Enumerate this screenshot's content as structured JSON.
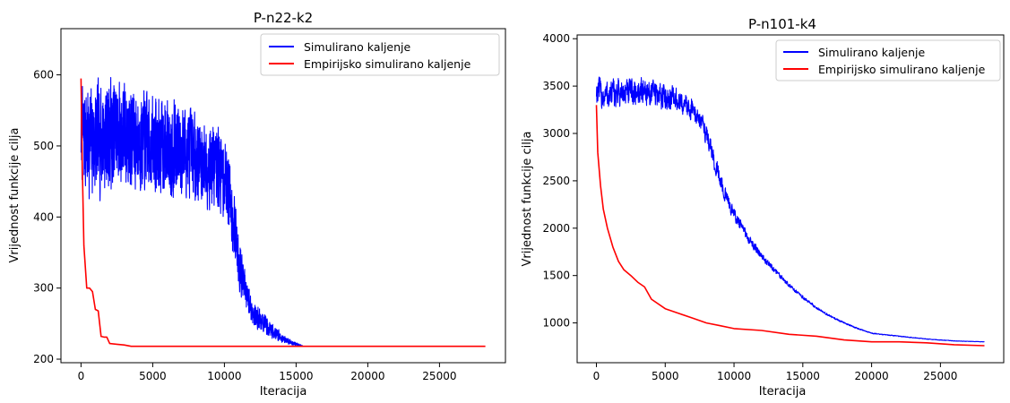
{
  "colors": {
    "series_1": "#0000ff",
    "series_2": "#ff0000",
    "axes": "#000000",
    "background": "#ffffff"
  },
  "chart_data": [
    {
      "type": "line",
      "title": "P-n22-k2",
      "xlabel": "Iteracija",
      "ylabel": "Vrijednost funkcije cilja",
      "xlim": [
        -1400,
        29600
      ],
      "ylim": [
        195,
        665
      ],
      "xticks": [
        0,
        5000,
        10000,
        15000,
        20000,
        25000
      ],
      "yticks": [
        200,
        300,
        400,
        500,
        600
      ],
      "grid": false,
      "legend_position": "top-right",
      "series": [
        {
          "name": "Simulirano kaljenje",
          "color": "#0000ff",
          "noisy": true,
          "x": [
            0,
            300,
            800,
            1500,
            2500,
            3500,
            4500,
            5500,
            6500,
            7500,
            8500,
            9500,
            10300,
            10600,
            11000,
            11500,
            12000,
            12500,
            13000,
            13500,
            14000,
            14500,
            15000,
            15500
          ],
          "mean": [
            520,
            510,
            505,
            515,
            520,
            510,
            505,
            500,
            495,
            490,
            480,
            470,
            445,
            400,
            340,
            290,
            265,
            255,
            245,
            238,
            230,
            225,
            221,
            218
          ],
          "amp": [
            75,
            90,
            95,
            95,
            90,
            85,
            80,
            80,
            80,
            75,
            70,
            70,
            65,
            60,
            45,
            30,
            22,
            18,
            15,
            12,
            8,
            5,
            3,
            1
          ],
          "y_min": 218,
          "y_max": 651
        },
        {
          "name": "Empirijsko simulirano kaljenje",
          "color": "#ff0000",
          "noisy": false,
          "x": [
            0,
            80,
            200,
            400,
            600,
            800,
            1000,
            1200,
            1400,
            1600,
            1800,
            2000,
            2500,
            3000,
            3500,
            4000,
            28200
          ],
          "y": [
            595,
            480,
            360,
            300,
            300,
            295,
            270,
            268,
            232,
            231,
            231,
            222,
            221,
            220,
            218,
            218,
            218
          ]
        }
      ]
    },
    {
      "type": "line",
      "title": "P-n101-k4",
      "xlabel": "Iteracija",
      "ylabel": "Vrijednost funkcije cilja",
      "xlim": [
        -1400,
        29600
      ],
      "ylim": [
        580,
        4040
      ],
      "xticks": [
        0,
        5000,
        10000,
        15000,
        20000,
        25000
      ],
      "yticks": [
        1000,
        1500,
        2000,
        2500,
        3000,
        3500,
        4000
      ],
      "grid": false,
      "legend_position": "top-right",
      "series": [
        {
          "name": "Simulirano kaljenje",
          "color": "#0000ff",
          "noisy": true,
          "x": [
            0,
            500,
            1500,
            2500,
            3500,
            4500,
            5500,
            6000,
            6500,
            7000,
            7500,
            8000,
            8500,
            9000,
            9500,
            10000,
            11000,
            12000,
            13000,
            14000,
            15000,
            16000,
            17000,
            18000,
            19000,
            20000,
            22000,
            24000,
            26000,
            28200
          ],
          "mean": [
            3450,
            3400,
            3420,
            3430,
            3450,
            3400,
            3380,
            3330,
            3300,
            3250,
            3150,
            3000,
            2750,
            2500,
            2300,
            2150,
            1900,
            1700,
            1550,
            1400,
            1270,
            1160,
            1070,
            1000,
            940,
            890,
            860,
            830,
            810,
            800
          ],
          "amp": [
            180,
            200,
            190,
            180,
            180,
            170,
            160,
            150,
            150,
            140,
            140,
            130,
            120,
            110,
            90,
            80,
            60,
            45,
            35,
            25,
            20,
            15,
            12,
            10,
            8,
            6,
            5,
            4,
            3,
            2
          ],
          "y_min": 790,
          "y_max": 3890
        },
        {
          "name": "Empirijsko simulirano kaljenje",
          "color": "#ff0000",
          "x": [
            0,
            100,
            300,
            500,
            800,
            1200,
            1600,
            2000,
            2500,
            3000,
            3500,
            4000,
            5000,
            6000,
            7000,
            8000,
            9000,
            10000,
            12000,
            14000,
            16000,
            18000,
            20000,
            22000,
            24000,
            26000,
            28200
          ],
          "y": [
            3300,
            2800,
            2450,
            2200,
            2000,
            1800,
            1650,
            1560,
            1500,
            1430,
            1380,
            1250,
            1150,
            1100,
            1050,
            1000,
            970,
            940,
            920,
            880,
            860,
            820,
            800,
            800,
            790,
            770,
            760
          ]
        }
      ]
    }
  ]
}
